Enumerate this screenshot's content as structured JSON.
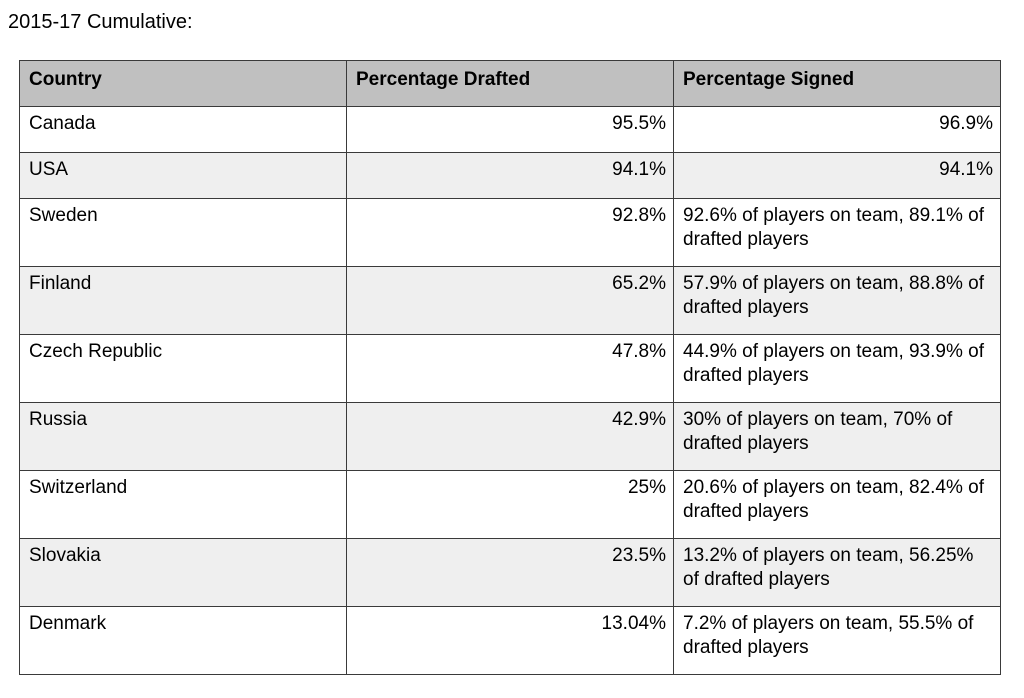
{
  "caption": "2015-17 Cumulative:",
  "table": {
    "headers": [
      "Country",
      "Percentage Drafted",
      "Percentage Signed"
    ],
    "rows": [
      {
        "country": "Canada",
        "drafted": "95.5%",
        "signed": "96.9%"
      },
      {
        "country": "USA",
        "drafted": "94.1%",
        "signed": "94.1%"
      },
      {
        "country": "Sweden",
        "drafted": "92.8%",
        "signed": "92.6% of players on team, 89.1% of drafted players"
      },
      {
        "country": "Finland",
        "drafted": "65.2%",
        "signed": "57.9% of players on team, 88.8% of drafted players"
      },
      {
        "country": "Czech Republic",
        "drafted": "47.8%",
        "signed": "44.9% of players on team, 93.9% of drafted players"
      },
      {
        "country": "Russia",
        "drafted": "42.9%",
        "signed": "30% of players on team, 70% of drafted players"
      },
      {
        "country": "Switzerland",
        "drafted": "25%",
        "signed": "20.6% of players on team, 82.4% of drafted players"
      },
      {
        "country": "Slovakia",
        "drafted": "23.5%",
        "signed": "13.2% of players on team, 56.25% of drafted players"
      },
      {
        "country": "Denmark",
        "drafted": "13.04%",
        "signed": "7.2% of players on team, 55.5% of drafted players"
      }
    ]
  }
}
